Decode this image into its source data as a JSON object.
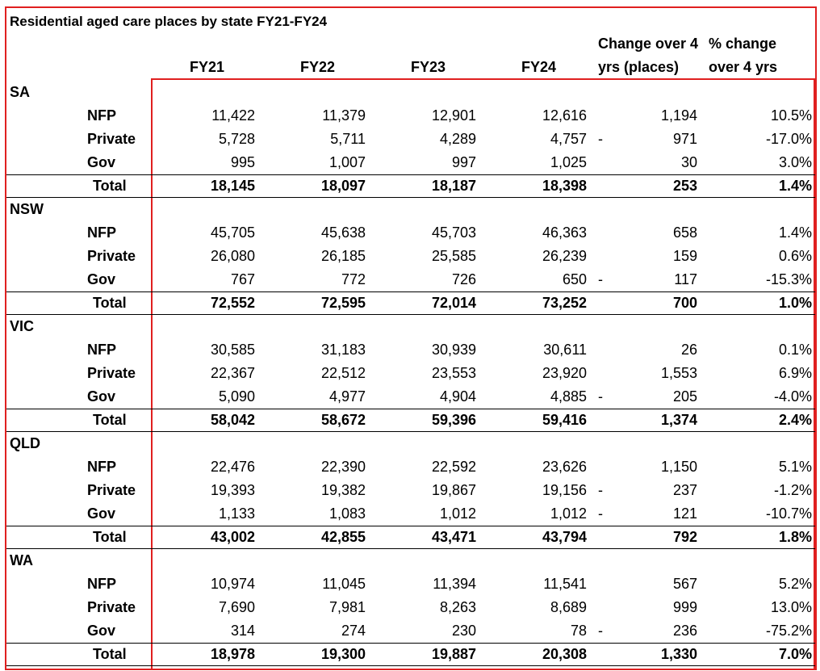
{
  "title": "Residential aged care places by state FY21-FY24",
  "header": {
    "columns": [
      "FY21",
      "FY22",
      "FY23",
      "FY24"
    ],
    "change_label": [
      "Change over 4",
      "yrs (places)"
    ],
    "pct_label": [
      "% change",
      "over 4 yrs"
    ]
  },
  "states": [
    {
      "name": "SA",
      "rows": [
        {
          "label": "NFP",
          "values": [
            "11,422",
            "11,379",
            "12,901",
            "12,616"
          ],
          "change": "1,194",
          "pct": "10.5%"
        },
        {
          "label": "Private",
          "values": [
            "5,728",
            "5,711",
            "4,289",
            "4,757"
          ],
          "change_sign": "-",
          "change": "971",
          "pct": "-17.0%"
        },
        {
          "label": "Gov",
          "values": [
            "995",
            "1,007",
            "997",
            "1,025"
          ],
          "change": "30",
          "pct": "3.0%"
        },
        {
          "label": "Total",
          "values": [
            "18,145",
            "18,097",
            "18,187",
            "18,398"
          ],
          "change": "253",
          "pct": "1.4%"
        }
      ]
    },
    {
      "name": "NSW",
      "rows": [
        {
          "label": "NFP",
          "values": [
            "45,705",
            "45,638",
            "45,703",
            "46,363"
          ],
          "change": "658",
          "pct": "1.4%"
        },
        {
          "label": "Private",
          "values": [
            "26,080",
            "26,185",
            "25,585",
            "26,239"
          ],
          "change": "159",
          "pct": "0.6%"
        },
        {
          "label": "Gov",
          "values": [
            "767",
            "772",
            "726",
            "650"
          ],
          "change_sign": "-",
          "change": "117",
          "pct": "-15.3%"
        },
        {
          "label": "Total",
          "values": [
            "72,552",
            "72,595",
            "72,014",
            "73,252"
          ],
          "change": "700",
          "pct": "1.0%"
        }
      ]
    },
    {
      "name": "VIC",
      "rows": [
        {
          "label": "NFP",
          "values": [
            "30,585",
            "31,183",
            "30,939",
            "30,611"
          ],
          "change": "26",
          "pct": "0.1%"
        },
        {
          "label": "Private",
          "values": [
            "22,367",
            "22,512",
            "23,553",
            "23,920"
          ],
          "change": "1,553",
          "pct": "6.9%"
        },
        {
          "label": "Gov",
          "values": [
            "5,090",
            "4,977",
            "4,904",
            "4,885"
          ],
          "change_sign": "-",
          "change": "205",
          "pct": "-4.0%"
        },
        {
          "label": "Total",
          "values": [
            "58,042",
            "58,672",
            "59,396",
            "59,416"
          ],
          "change": "1,374",
          "pct": "2.4%"
        }
      ]
    },
    {
      "name": "QLD",
      "rows": [
        {
          "label": "NFP",
          "values": [
            "22,476",
            "22,390",
            "22,592",
            "23,626"
          ],
          "change": "1,150",
          "pct": "5.1%"
        },
        {
          "label": "Private",
          "values": [
            "19,393",
            "19,382",
            "19,867",
            "19,156"
          ],
          "change_sign": "-",
          "change": "237",
          "pct": "-1.2%"
        },
        {
          "label": "Gov",
          "values": [
            "1,133",
            "1,083",
            "1,012",
            "1,012"
          ],
          "change_sign": "-",
          "change": "121",
          "pct": "-10.7%"
        },
        {
          "label": "Total",
          "values": [
            "43,002",
            "42,855",
            "43,471",
            "43,794"
          ],
          "change": "792",
          "pct": "1.8%"
        }
      ]
    },
    {
      "name": "WA",
      "rows": [
        {
          "label": "NFP",
          "values": [
            "10,974",
            "11,045",
            "11,394",
            "11,541"
          ],
          "change": "567",
          "pct": "5.2%"
        },
        {
          "label": "Private",
          "values": [
            "7,690",
            "7,981",
            "8,263",
            "8,689"
          ],
          "change": "999",
          "pct": "13.0%"
        },
        {
          "label": "Gov",
          "values": [
            "314",
            "274",
            "230",
            "78"
          ],
          "change_sign": "-",
          "change": "236",
          "pct": "-75.2%"
        },
        {
          "label": "Total",
          "values": [
            "18,978",
            "19,300",
            "19,887",
            "20,308"
          ],
          "change": "1,330",
          "pct": "7.0%"
        }
      ]
    }
  ]
}
